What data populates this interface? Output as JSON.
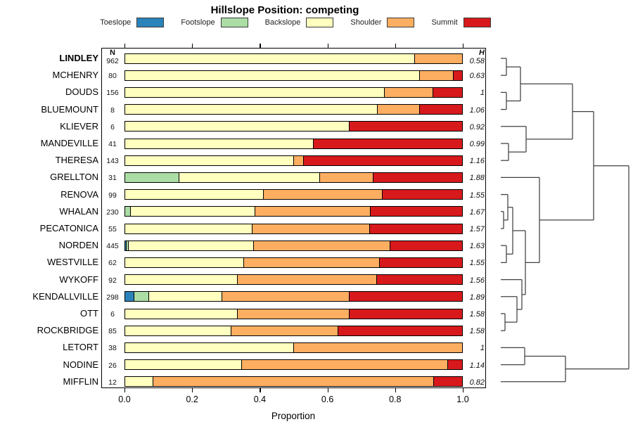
{
  "title": "Hillslope Position: competing",
  "legend": [
    {
      "label": "Toeslope",
      "color": "#2B83BA"
    },
    {
      "label": "Footslope",
      "color": "#ABDDA4"
    },
    {
      "label": "Backslope",
      "color": "#FFFFBF"
    },
    {
      "label": "Shoulder",
      "color": "#FDAE61"
    },
    {
      "label": "Summit",
      "color": "#D7191C"
    }
  ],
  "columns": {
    "n_header": "N",
    "h_header": "H"
  },
  "axis": {
    "label": "Proportion",
    "ticks": [
      "0.0",
      "0.2",
      "0.4",
      "0.6",
      "0.8",
      "1.0"
    ],
    "values": [
      0,
      0.2,
      0.4,
      0.6,
      0.8,
      1.0
    ]
  },
  "chart_data": {
    "type": "bar",
    "subtype": "horizontal-stacked-proportion",
    "title": "Hillslope Position: competing",
    "xlabel": "Proportion",
    "xlim": [
      0,
      1
    ],
    "x_ticks": [
      0,
      0.2,
      0.4,
      0.6,
      0.8,
      1.0
    ],
    "grid": false,
    "legend_position": "top",
    "classes": [
      "Toeslope",
      "Footslope",
      "Backslope",
      "Shoulder",
      "Summit"
    ],
    "colors": [
      "#2B83BA",
      "#ABDDA4",
      "#FFFFBF",
      "#FDAE61",
      "#D7191C"
    ],
    "bar_border_color": "#000000",
    "rows": [
      {
        "name": "LINDLEY",
        "bold": true,
        "n": "962",
        "h": "0.58",
        "values": [
          0,
          0,
          0.86,
          0.14,
          0
        ]
      },
      {
        "name": "MCHENRY",
        "bold": false,
        "n": "80",
        "h": "0.63",
        "values": [
          0,
          0,
          0.875,
          0.1,
          0.025
        ]
      },
      {
        "name": "DOUDS",
        "bold": false,
        "n": "156",
        "h": "1",
        "values": [
          0,
          0,
          0.77,
          0.144,
          0.086
        ]
      },
      {
        "name": "BLUEMOUNT",
        "bold": false,
        "n": "8",
        "h": "1.06",
        "values": [
          0,
          0,
          0.75,
          0.125,
          0.125
        ]
      },
      {
        "name": "KLIEVER",
        "bold": false,
        "n": "6",
        "h": "0.92",
        "values": [
          0,
          0,
          0.667,
          0,
          0.333
        ]
      },
      {
        "name": "MANDEVILLE",
        "bold": false,
        "n": "41",
        "h": "0.99",
        "values": [
          0,
          0,
          0.56,
          0,
          0.44
        ]
      },
      {
        "name": "THERESA",
        "bold": false,
        "n": "143",
        "h": "1.16",
        "values": [
          0,
          0,
          0.5,
          0.03,
          0.47
        ]
      },
      {
        "name": "GRELLTON",
        "bold": false,
        "n": "31",
        "h": "1.88",
        "values": [
          0,
          0.16,
          0.418,
          0.16,
          0.262
        ]
      },
      {
        "name": "RENOVA",
        "bold": false,
        "n": "99",
        "h": "1.55",
        "values": [
          0,
          0,
          0.412,
          0.353,
          0.235
        ]
      },
      {
        "name": "WHALAN",
        "bold": false,
        "n": "230",
        "h": "1.67",
        "values": [
          0,
          0.017,
          0.37,
          0.341,
          0.272
        ]
      },
      {
        "name": "PECATONICA",
        "bold": false,
        "n": "55",
        "h": "1.57",
        "values": [
          0,
          0,
          0.378,
          0.348,
          0.274
        ]
      },
      {
        "name": "NORDEN",
        "bold": false,
        "n": "445",
        "h": "1.63",
        "values": [
          0.005,
          0.005,
          0.372,
          0.405,
          0.213
        ]
      },
      {
        "name": "WESTVILLE",
        "bold": false,
        "n": "62",
        "h": "1.55",
        "values": [
          0,
          0,
          0.353,
          0.402,
          0.245
        ]
      },
      {
        "name": "WYKOFF",
        "bold": false,
        "n": "92",
        "h": "1.56",
        "values": [
          0,
          0,
          0.335,
          0.413,
          0.252
        ]
      },
      {
        "name": "KENDALLVILLE",
        "bold": false,
        "n": "298",
        "h": "1.89",
        "values": [
          0.028,
          0.043,
          0.217,
          0.378,
          0.334
        ]
      },
      {
        "name": "OTT",
        "bold": false,
        "n": "6",
        "h": "1.58",
        "values": [
          0,
          0,
          0.333,
          0.333,
          0.334
        ]
      },
      {
        "name": "ROCKBRIDGE",
        "bold": false,
        "n": "85",
        "h": "1.58",
        "values": [
          0,
          0,
          0.315,
          0.317,
          0.368
        ]
      },
      {
        "name": "LETORT",
        "bold": false,
        "n": "38",
        "h": "1",
        "values": [
          0,
          0,
          0.5,
          0.5,
          0
        ]
      },
      {
        "name": "NODINE",
        "bold": false,
        "n": "26",
        "h": "1.14",
        "values": [
          0,
          0,
          0.346,
          0.613,
          0.041
        ]
      },
      {
        "name": "MIFFLIN",
        "bold": false,
        "n": "12",
        "h": "0.82",
        "values": [
          0,
          0,
          0.083,
          0.834,
          0.083
        ]
      }
    ],
    "dendrogram": {
      "orientation": "right",
      "leaf_order_same_as_rows": true,
      "merges": [
        {
          "id": "M1",
          "a": "L0",
          "b": "L1",
          "h": 8
        },
        {
          "id": "M2",
          "a": "L2",
          "b": "L3",
          "h": 8
        },
        {
          "id": "M3",
          "a": "M1",
          "b": "M2",
          "h": 28
        },
        {
          "id": "M4",
          "a": "L5",
          "b": "L6",
          "h": 11
        },
        {
          "id": "M5",
          "a": "L4",
          "b": "M4",
          "h": 36
        },
        {
          "id": "M6",
          "a": "M3",
          "b": "M5",
          "h": 102
        },
        {
          "id": "A1",
          "a": "L9",
          "b": "L10",
          "h": 4
        },
        {
          "id": "A2",
          "a": "L8",
          "b": "A1",
          "h": 10
        },
        {
          "id": "A3",
          "a": "L11",
          "b": "L12",
          "h": 8
        },
        {
          "id": "A4",
          "a": "A2",
          "b": "A3",
          "h": 17
        },
        {
          "id": "B1",
          "a": "L15",
          "b": "L16",
          "h": 6
        },
        {
          "id": "B2",
          "a": "L14",
          "b": "B1",
          "h": 23
        },
        {
          "id": "B3",
          "a": "L13",
          "b": "B2",
          "h": 30
        },
        {
          "id": "A5",
          "a": "A4",
          "b": "B3",
          "h": 35
        },
        {
          "id": "C1",
          "a": "L7",
          "b": "A5",
          "h": 55
        },
        {
          "id": "M7",
          "a": "M6",
          "b": "C1",
          "h": 132
        },
        {
          "id": "D1",
          "a": "L17",
          "b": "L18",
          "h": 34
        },
        {
          "id": "D2",
          "a": "D1",
          "b": "L19",
          "h": 92
        },
        {
          "id": "RT",
          "a": "M7",
          "b": "D2",
          "h": 182
        }
      ]
    }
  }
}
